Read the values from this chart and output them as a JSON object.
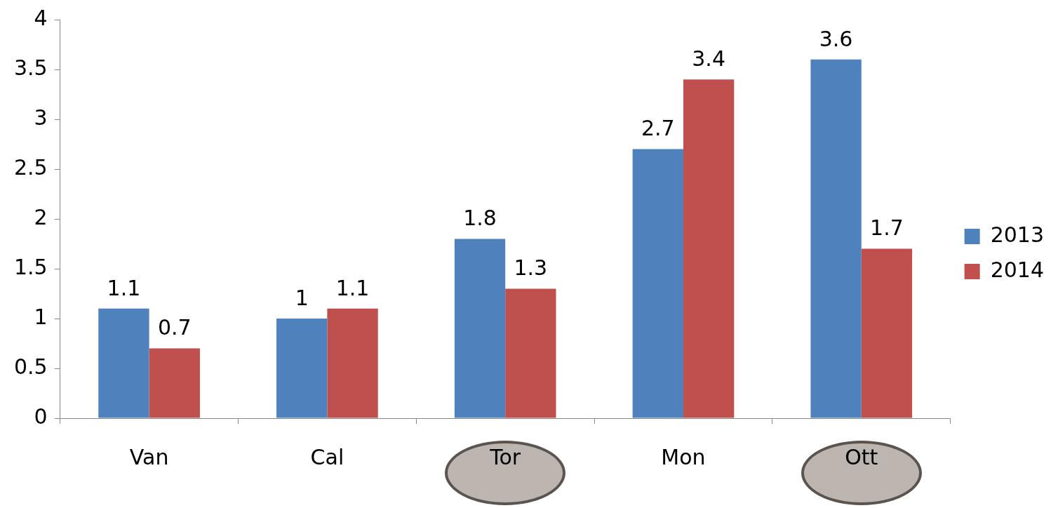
{
  "chart_data": {
    "type": "bar",
    "categories": [
      "Van",
      "Cal",
      "Tor",
      "Mon",
      "Ott"
    ],
    "series": [
      {
        "name": "2013",
        "color": "#4f81bd",
        "values": [
          1.1,
          1,
          1.8,
          2.7,
          3.6
        ]
      },
      {
        "name": "2014",
        "color": "#c0504d",
        "values": [
          0.7,
          1.1,
          1.3,
          3.4,
          1.7
        ]
      }
    ],
    "ylim": [
      0,
      4
    ],
    "yticks": [
      0,
      0.5,
      1,
      1.5,
      2,
      2.5,
      3,
      3.5,
      4
    ],
    "grid": false,
    "legend": "right",
    "data_labels": true
  }
}
